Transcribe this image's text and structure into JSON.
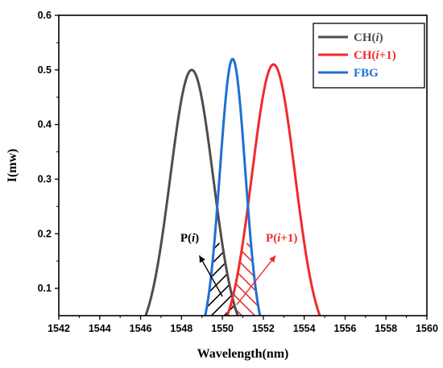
{
  "chart_data": {
    "type": "line",
    "xlabel": "Wavelength(nm)",
    "ylabel": "I(mw)",
    "xlim": [
      1542,
      1560
    ],
    "ylim": [
      0.05,
      0.6
    ],
    "xticks": [
      1542,
      1544,
      1546,
      1548,
      1550,
      1552,
      1554,
      1556,
      1558,
      1560
    ],
    "yticks": [
      0.1,
      0.2,
      0.3,
      0.4,
      0.5,
      0.6
    ],
    "grid": false,
    "legend_position": "top-right",
    "series": [
      {
        "name_parts": [
          "CH(",
          "i",
          ")"
        ],
        "color": "#4d4d4d",
        "peak": 0.5,
        "center": 1548.5,
        "x_range": [
          1545.8,
          1551.2
        ]
      },
      {
        "name_parts": [
          "CH(",
          "i",
          "+1)"
        ],
        "color": "#ef2b2b",
        "peak": 0.51,
        "center": 1552.5,
        "x_range": [
          1549.8,
          1555.2
        ]
      },
      {
        "name_parts": [
          "FBG",
          "",
          ""
        ],
        "color": "#1f6fd6",
        "peak": 0.52,
        "center": 1550.5,
        "x_range": [
          1548.7,
          1552.3
        ]
      }
    ],
    "annotations": [
      {
        "parts": [
          "P(",
          "i",
          ")"
        ],
        "color": "#000000",
        "x": 1548.4,
        "y": 0.18
      },
      {
        "parts": [
          "P(",
          "i",
          "+1)"
        ],
        "color": "#ef2b2b",
        "x": 1552.9,
        "y": 0.18
      }
    ]
  }
}
